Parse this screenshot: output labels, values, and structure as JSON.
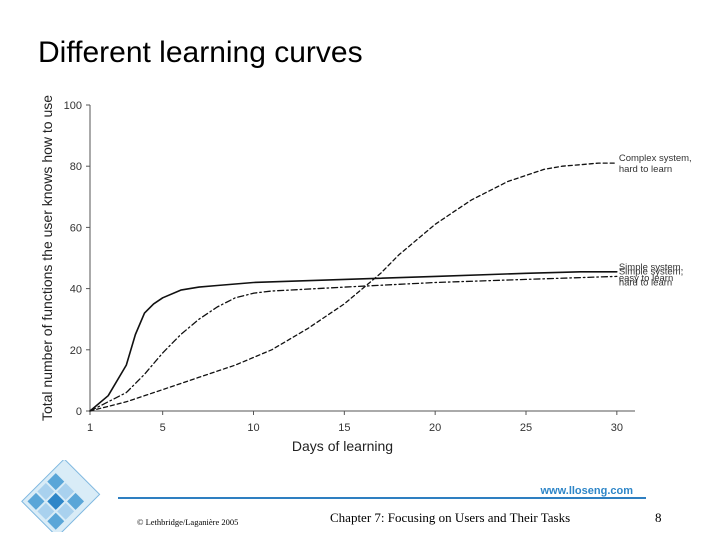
{
  "slide": {
    "title": "Different learning curves"
  },
  "chart_data": {
    "type": "line",
    "xlabel": "Days of learning",
    "ylabel": "Total number of functions the user knows how to use",
    "xlim": [
      1,
      31
    ],
    "ylim": [
      0,
      100
    ],
    "x_ticks": [
      1,
      5,
      10,
      15,
      20,
      25,
      30
    ],
    "y_ticks": [
      0,
      20,
      40,
      60,
      80,
      100
    ],
    "grid": false,
    "series": [
      {
        "label": "Complex system, hard to learn",
        "label_lines": [
          "Complex system,",
          "hard to learn"
        ],
        "style": "dashed",
        "x": [
          1,
          3,
          5,
          7,
          9,
          11,
          13,
          15,
          16,
          17,
          18,
          19,
          20,
          21,
          22,
          23,
          24,
          25,
          26,
          27,
          28,
          29,
          30
        ],
        "y": [
          0,
          3,
          7,
          11,
          15,
          20,
          27,
          35,
          40,
          45,
          51,
          56,
          61,
          65,
          69,
          72,
          75,
          77,
          79,
          80,
          80.5,
          81,
          81
        ]
      },
      {
        "label": "Simple system, easy to learn",
        "label_lines": [
          "Simple system,",
          "easy to learn"
        ],
        "style": "solid",
        "x": [
          1,
          2,
          3,
          3.5,
          4,
          4.5,
          5,
          6,
          7,
          8,
          10,
          15,
          20,
          25,
          28,
          30
        ],
        "y": [
          0,
          5,
          15,
          25,
          32,
          35,
          37,
          39.5,
          40.5,
          41,
          42,
          43,
          44,
          45,
          45.5,
          45.5
        ]
      },
      {
        "label": "Simple system, hard to learn",
        "label_lines": [
          "Simple system,",
          "hard to learn"
        ],
        "style": "dash-dot",
        "x": [
          1,
          3,
          4,
          5,
          6,
          7,
          8,
          9,
          10,
          11,
          12,
          15,
          20,
          25,
          30
        ],
        "y": [
          0,
          6,
          12,
          19,
          25,
          30,
          34,
          37,
          38.5,
          39.2,
          39.5,
          40.5,
          42,
          43,
          44
        ]
      }
    ]
  },
  "footer": {
    "url": "www.lloseng.com",
    "copyright": "© Lethbridge/Laganière 2005",
    "chapter": "Chapter 7: Focusing on Users and Their Tasks",
    "page_number": "8"
  }
}
